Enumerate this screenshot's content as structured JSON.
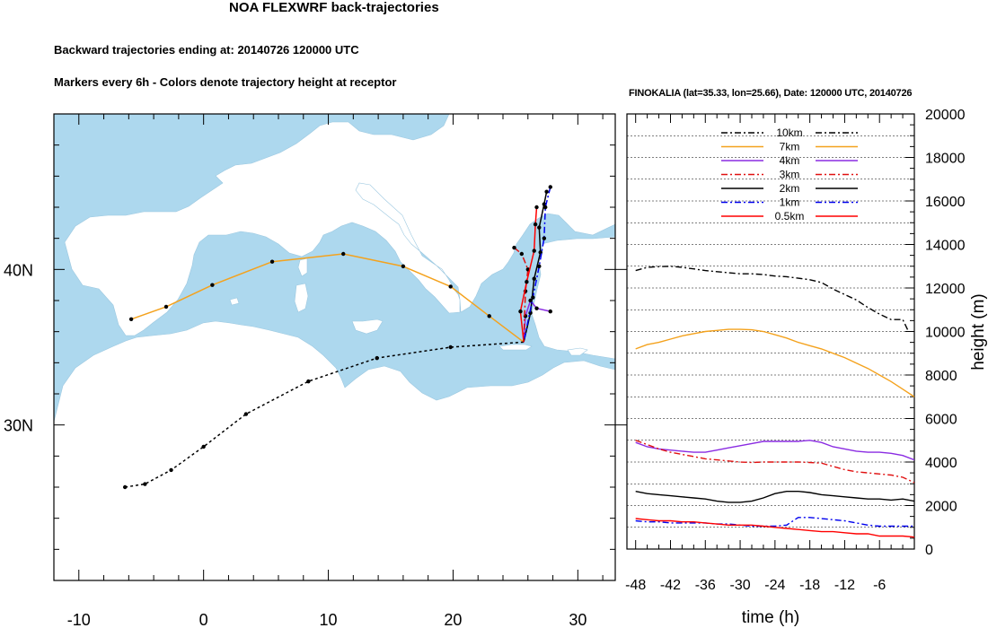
{
  "figure": {
    "title": "NOA FLEXWRF back-trajectories",
    "subtitle1": "Backward trajectories ending at: 20140726  120000 UTC",
    "subtitle2": "Markers every 6h - Colors denote trajectory height at receptor"
  },
  "colors": {
    "sea": "#add8ee",
    "land": "#ffffff",
    "10km": "#000000",
    "7km": "#f4a21d",
    "4km": "#8a2be2",
    "3km": "#e01010",
    "2km": "#000000",
    "1km": "#0000ee",
    "0.5km": "#ff0000"
  },
  "chart_data": [
    {
      "type": "line",
      "panel": "map",
      "xlim": [
        -12,
        33
      ],
      "ylim": [
        20,
        50
      ],
      "x_ticks": [
        -10,
        0,
        10,
        20,
        30
      ],
      "x_tick_labels": [
        "-10",
        "0",
        "10",
        "20",
        "30"
      ],
      "y_ticks": [
        30,
        40
      ],
      "y_tick_labels": [
        "30N",
        "40N"
      ],
      "receptor": [
        25.66,
        35.33
      ],
      "series": [
        {
          "key": "7km",
          "style": "solid",
          "points": [
            [
              -5.8,
              36.8
            ],
            [
              -3.0,
              37.6
            ],
            [
              0.7,
              39.0
            ],
            [
              5.5,
              40.5
            ],
            [
              11.2,
              41.0
            ],
            [
              16.0,
              40.2
            ],
            [
              19.8,
              38.9
            ],
            [
              22.9,
              37.0
            ],
            [
              25.66,
              35.33
            ]
          ]
        },
        {
          "key": "10km",
          "style": "dashed",
          "points": [
            [
              -6.3,
              26.0
            ],
            [
              -4.7,
              26.2
            ],
            [
              -2.6,
              27.1
            ],
            [
              0.0,
              28.6
            ],
            [
              3.4,
              30.7
            ],
            [
              8.4,
              32.8
            ],
            [
              13.9,
              34.3
            ],
            [
              19.8,
              35.0
            ],
            [
              25.66,
              35.33
            ]
          ]
        },
        {
          "key": "4km",
          "style": "solid",
          "points": [
            [
              27.8,
              37.3
            ],
            [
              26.7,
              37.5
            ],
            [
              26.2,
              38.0
            ],
            [
              25.8,
              37.0
            ],
            [
              25.66,
              35.33
            ]
          ]
        },
        {
          "key": "3km",
          "style": "dashdot",
          "points": [
            [
              24.9,
              41.4
            ],
            [
              25.5,
              41.0
            ],
            [
              26.0,
              40.0
            ],
            [
              25.8,
              38.6
            ],
            [
              25.66,
              35.33
            ]
          ]
        },
        {
          "key": "2km",
          "style": "solid",
          "points": [
            [
              27.5,
              45.0
            ],
            [
              27.3,
              44.2
            ],
            [
              26.9,
              42.7
            ],
            [
              27.0,
              41.1
            ],
            [
              26.5,
              39.4
            ],
            [
              26.2,
              37.2
            ],
            [
              25.66,
              35.33
            ]
          ]
        },
        {
          "key": "1km",
          "style": "dashdot",
          "points": [
            [
              27.8,
              45.3
            ],
            [
              27.4,
              44.0
            ],
            [
              27.3,
              42.0
            ],
            [
              26.9,
              40.2
            ],
            [
              26.4,
              38.2
            ],
            [
              25.66,
              35.33
            ]
          ]
        },
        {
          "key": "0.5km",
          "style": "solid",
          "points": [
            [
              26.7,
              44.0
            ],
            [
              26.6,
              42.9
            ],
            [
              26.5,
              41.2
            ],
            [
              25.9,
              39.2
            ],
            [
              25.4,
              37.3
            ],
            [
              25.66,
              35.33
            ]
          ]
        }
      ]
    },
    {
      "type": "line",
      "panel": "height",
      "title": "FINOKALIA (lat=35.33,  lon=25.66), Date: 120000 UTC, 20140726",
      "xlabel": "time (h)",
      "ylabel": "height (m)",
      "xlim": [
        -49.5,
        0
      ],
      "ylim": [
        0,
        20000
      ],
      "x_ticks": [
        -48,
        -42,
        -36,
        -30,
        -24,
        -18,
        -12,
        -6
      ],
      "y_ticks": [
        0,
        2000,
        4000,
        6000,
        8000,
        10000,
        12000,
        14000,
        16000,
        18000,
        20000
      ],
      "grid": true,
      "legend_position": "top-center",
      "legend": [
        "10km",
        "7km",
        "4km",
        "3km",
        "2km",
        "1km",
        "0.5km"
      ],
      "series": [
        {
          "name": "10km",
          "style": "dashdot",
          "x": [
            -48,
            -46,
            -44,
            -42,
            -40,
            -38,
            -36,
            -34,
            -32,
            -30,
            -28,
            -26,
            -24,
            -22,
            -20,
            -18,
            -16,
            -14,
            -12,
            -10,
            -8,
            -6,
            -4,
            -2,
            -1
          ],
          "y": [
            12800,
            12950,
            12980,
            13000,
            12950,
            12880,
            12800,
            12750,
            12700,
            12650,
            12650,
            12620,
            12550,
            12520,
            12450,
            12380,
            12250,
            11950,
            11700,
            11450,
            11100,
            10800,
            10550,
            10550,
            10000
          ]
        },
        {
          "name": "7km",
          "style": "solid",
          "x": [
            -48,
            -46,
            -44,
            -42,
            -40,
            -38,
            -36,
            -34,
            -32,
            -30,
            -28,
            -26,
            -24,
            -22,
            -20,
            -18,
            -16,
            -14,
            -12,
            -10,
            -8,
            -6,
            -4,
            -2,
            0
          ],
          "y": [
            9200,
            9400,
            9500,
            9650,
            9800,
            9900,
            10000,
            10050,
            10100,
            10100,
            10080,
            10000,
            9850,
            9700,
            9500,
            9350,
            9200,
            9000,
            8800,
            8550,
            8300,
            8000,
            7700,
            7350,
            7000
          ]
        },
        {
          "name": "4km",
          "style": "solid",
          "x": [
            -48,
            -46,
            -44,
            -42,
            -40,
            -38,
            -36,
            -34,
            -32,
            -30,
            -28,
            -26,
            -24,
            -22,
            -20,
            -18,
            -16,
            -14,
            -12,
            -10,
            -8,
            -6,
            -4,
            -2,
            0
          ],
          "y": [
            4900,
            4700,
            4600,
            4550,
            4500,
            4450,
            4450,
            4550,
            4650,
            4750,
            4850,
            4950,
            4950,
            4950,
            4950,
            5000,
            4900,
            4700,
            4600,
            4500,
            4450,
            4450,
            4400,
            4300,
            4100
          ]
        },
        {
          "name": "3km",
          "style": "dashdot",
          "x": [
            -48,
            -46,
            -44,
            -42,
            -40,
            -38,
            -36,
            -34,
            -32,
            -30,
            -28,
            -26,
            -24,
            -22,
            -20,
            -18,
            -16,
            -14,
            -12,
            -10,
            -8,
            -6,
            -4,
            -2,
            0
          ],
          "y": [
            5000,
            4800,
            4600,
            4450,
            4350,
            4250,
            4150,
            4100,
            4050,
            4000,
            3980,
            4000,
            4000,
            4000,
            4000,
            3980,
            3950,
            3800,
            3650,
            3550,
            3500,
            3450,
            3400,
            3300,
            3050
          ]
        },
        {
          "name": "2km",
          "style": "solid",
          "x": [
            -48,
            -46,
            -44,
            -42,
            -40,
            -38,
            -36,
            -34,
            -32,
            -30,
            -28,
            -26,
            -24,
            -22,
            -20,
            -18,
            -16,
            -14,
            -12,
            -10,
            -8,
            -6,
            -4,
            -2,
            0
          ],
          "y": [
            2650,
            2550,
            2500,
            2450,
            2400,
            2350,
            2300,
            2200,
            2150,
            2150,
            2200,
            2350,
            2550,
            2650,
            2650,
            2600,
            2500,
            2450,
            2400,
            2350,
            2300,
            2300,
            2250,
            2300,
            2200
          ]
        },
        {
          "name": "1km",
          "style": "dashdot",
          "x": [
            -48,
            -46,
            -44,
            -42,
            -40,
            -38,
            -36,
            -34,
            -32,
            -30,
            -28,
            -26,
            -24,
            -22,
            -20,
            -18,
            -16,
            -14,
            -12,
            -10,
            -8,
            -6,
            -4,
            -2,
            0
          ],
          "y": [
            1300,
            1250,
            1250,
            1200,
            1200,
            1200,
            1200,
            1150,
            1150,
            1100,
            1050,
            1050,
            1050,
            1100,
            1450,
            1450,
            1400,
            1350,
            1300,
            1200,
            1100,
            1050,
            1050,
            1050,
            1050
          ]
        },
        {
          "name": "0.5km",
          "style": "solid",
          "x": [
            -48,
            -46,
            -44,
            -42,
            -40,
            -38,
            -36,
            -34,
            -32,
            -30,
            -28,
            -26,
            -24,
            -22,
            -20,
            -18,
            -16,
            -14,
            -12,
            -10,
            -8,
            -6,
            -4,
            -2,
            0
          ],
          "y": [
            1400,
            1350,
            1300,
            1300,
            1250,
            1250,
            1200,
            1150,
            1100,
            1100,
            1100,
            1050,
            1000,
            950,
            900,
            850,
            800,
            800,
            750,
            700,
            700,
            600,
            600,
            600,
            550
          ]
        }
      ]
    }
  ]
}
